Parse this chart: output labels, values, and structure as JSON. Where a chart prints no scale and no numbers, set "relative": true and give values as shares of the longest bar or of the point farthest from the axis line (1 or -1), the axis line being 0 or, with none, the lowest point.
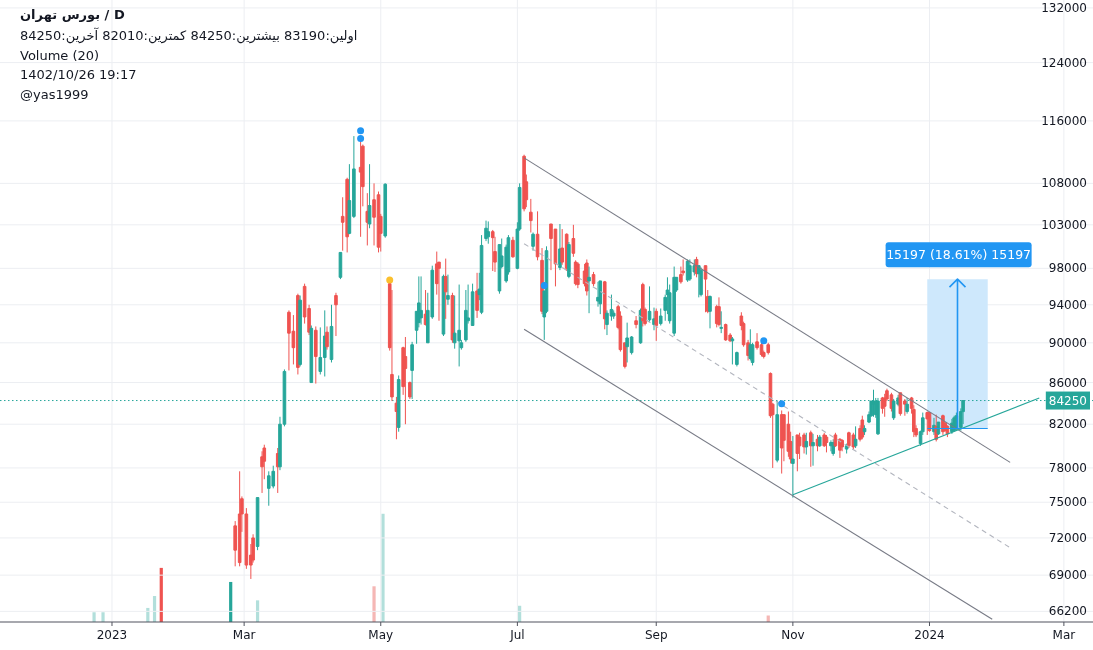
{
  "chart_data": [
    {
      "type": "candlestick",
      "title": "D / بورس تهران",
      "annotations": [
        "اولین:83190 بیشترین:84250 کمترین:82010 آخرین:84250",
        "Volume (20)",
        "1402/10/26 19:17",
        "@yas1999",
        {
          "text": "15197 (18.61%) 15197",
          "x": "2024-01-14",
          "y": 96797
        }
      ],
      "x": [
        "2023-02-25",
        "2023-02-27",
        "2023-02-28",
        "2023-03-02",
        "2023-03-04",
        "2023-03-05",
        "2023-03-07",
        "2023-03-09",
        "2023-03-10",
        "2023-03-12",
        "2023-03-14",
        "2023-03-16",
        "2023-03-17",
        "2023-03-19",
        "2023-03-21",
        "2023-03-23",
        "2023-03-25",
        "2023-03-26",
        "2023-03-28",
        "2023-03-30",
        "2023-03-31",
        "2023-04-02",
        "2023-04-04",
        "2023-04-06",
        "2023-04-07",
        "2023-04-09",
        "2023-04-11",
        "2023-04-13",
        "2023-04-14",
        "2023-04-16",
        "2023-04-17",
        "2023-04-19",
        "2023-04-22",
        "2023-04-23",
        "2023-04-25",
        "2023-04-26",
        "2023-04-28",
        "2023-04-30",
        "2023-05-01",
        "2023-05-03",
        "2023-05-05",
        "2023-05-06",
        "2023-05-08",
        "2023-05-09",
        "2023-05-11",
        "2023-05-12",
        "2023-05-14",
        "2023-05-15",
        "2023-05-17",
        "2023-05-18",
        "2023-05-19",
        "2023-05-21",
        "2023-05-22",
        "2023-05-24",
        "2023-05-26",
        "2023-05-27",
        "2023-05-29",
        "2023-05-30",
        "2023-05-31",
        "2023-06-02",
        "2023-06-03",
        "2023-06-05",
        "2023-06-06",
        "2023-06-08",
        "2023-06-09",
        "2023-06-11",
        "2023-06-13",
        "2023-06-14",
        "2023-06-15",
        "2023-06-17",
        "2023-06-18",
        "2023-06-20",
        "2023-06-21",
        "2023-06-23",
        "2023-06-24",
        "2023-06-26",
        "2023-06-27",
        "2023-06-29",
        "2023-07-01",
        "2023-07-02",
        "2023-07-04",
        "2023-07-05",
        "2023-07-07",
        "2023-07-08",
        "2023-07-10",
        "2023-07-12",
        "2023-07-13",
        "2023-07-14",
        "2023-07-16",
        "2023-07-18",
        "2023-07-20",
        "2023-07-21",
        "2023-07-23",
        "2023-07-24",
        "2023-07-26",
        "2023-07-27",
        "2023-07-28",
        "2023-07-31",
        "2023-08-01",
        "2023-08-02",
        "2023-08-04",
        "2023-08-06",
        "2023-08-07",
        "2023-08-09",
        "2023-08-10",
        "2023-08-12",
        "2023-08-13",
        "2023-08-15",
        "2023-08-16",
        "2023-08-18",
        "2023-08-19",
        "2023-08-21",
        "2023-08-23",
        "2023-08-25",
        "2023-08-26",
        "2023-08-27",
        "2023-08-29",
        "2023-08-31",
        "2023-09-01",
        "2023-09-03",
        "2023-09-05",
        "2023-09-06",
        "2023-09-07",
        "2023-09-09",
        "2023-09-10",
        "2023-09-12",
        "2023-09-13",
        "2023-09-15",
        "2023-09-16",
        "2023-09-18",
        "2023-09-19",
        "2023-09-20",
        "2023-09-21",
        "2023-09-23",
        "2023-09-24",
        "2023-09-25",
        "2023-09-28",
        "2023-09-29",
        "2023-09-30",
        "2023-10-02",
        "2023-10-04",
        "2023-10-05",
        "2023-10-07",
        "2023-10-09",
        "2023-10-10",
        "2023-10-12",
        "2023-10-13",
        "2023-10-14",
        "2023-10-16",
        "2023-10-18",
        "2023-10-19",
        "2023-10-21",
        "2023-10-22",
        "2023-10-23",
        "2023-10-25",
        "2023-10-27",
        "2023-10-28",
        "2023-10-30",
        "2023-10-31",
        "2023-11-01",
        "2023-11-03",
        "2023-11-04",
        "2023-11-06",
        "2023-11-07",
        "2023-11-09",
        "2023-11-10",
        "2023-11-12",
        "2023-11-13",
        "2023-11-15",
        "2023-11-16",
        "2023-11-18",
        "2023-11-19",
        "2023-11-20",
        "2023-11-22",
        "2023-11-23",
        "2023-11-25",
        "2023-11-26",
        "2023-11-28",
        "2023-11-29",
        "2023-12-01",
        "2023-12-02",
        "2023-12-03",
        "2023-12-05",
        "2023-12-06",
        "2023-12-07",
        "2023-12-08",
        "2023-12-09",
        "2023-12-11",
        "2023-12-12",
        "2023-12-13",
        "2023-12-15",
        "2023-12-16",
        "2023-12-18",
        "2023-12-19",
        "2023-12-21",
        "2023-12-22",
        "2023-12-24",
        "2023-12-25",
        "2023-12-26",
        "2023-12-28",
        "2023-12-29",
        "2023-12-31",
        "2024-01-01",
        "2024-01-03",
        "2024-01-04",
        "2024-01-05",
        "2024-01-07",
        "2024-01-08",
        "2024-01-09",
        "2024-01-11",
        "2024-01-12",
        "2024-01-13",
        "2024-01-15",
        "2024-01-16"
      ],
      "ohlc": [
        [
          73000,
          73400,
          69700,
          71000
        ],
        [
          74000,
          77700,
          69700,
          70000
        ],
        [
          75300,
          75500,
          72500,
          74000
        ],
        [
          74000,
          74500,
          69500,
          69800
        ],
        [
          70600,
          71500,
          68700,
          69800
        ],
        [
          72000,
          72300,
          70000,
          70200
        ],
        [
          71300,
          75400,
          71000,
          75400
        ],
        [
          79000,
          79500,
          75800,
          78100
        ],
        [
          79800,
          80100,
          77000,
          78600
        ],
        [
          76200,
          77700,
          74700,
          77300
        ],
        [
          76400,
          78200,
          76200,
          77700
        ],
        [
          79300,
          79800,
          75800,
          78100
        ],
        [
          78100,
          82700,
          77800,
          82000
        ],
        [
          82000,
          87300,
          81800,
          87100
        ],
        [
          93200,
          93400,
          87200,
          91000
        ],
        [
          91200,
          92900,
          87800,
          89500
        ],
        [
          95000,
          95200,
          86800,
          87500
        ],
        [
          87800,
          95000,
          87600,
          94500
        ],
        [
          96000,
          96300,
          92000,
          92700
        ],
        [
          93600,
          94000,
          90800,
          91100
        ],
        [
          86000,
          91800,
          86000,
          91500
        ],
        [
          91300,
          91700,
          85900,
          88600
        ],
        [
          87100,
          91600,
          86800,
          88500
        ],
        [
          88500,
          93400,
          86600,
          90700
        ],
        [
          91100,
          91700,
          89300,
          89600
        ],
        [
          88300,
          94000,
          88000,
          91700
        ],
        [
          95000,
          95300,
          90700,
          94000
        ],
        [
          97000,
          99800,
          96800,
          99800
        ],
        [
          104000,
          106300,
          100000,
          103300
        ],
        [
          108500,
          108700,
          99800,
          101600
        ],
        [
          102000,
          110400,
          101900,
          105900
        ],
        [
          104000,
          114000,
          103800,
          109800
        ],
        [
          110000,
          113500,
          101600,
          109400
        ],
        [
          112700,
          112900,
          105200,
          107600
        ],
        [
          104600,
          106800,
          100600,
          103300
        ],
        [
          103100,
          110400,
          102600,
          105300
        ],
        [
          106000,
          108000,
          100600,
          103900
        ],
        [
          106600,
          107000,
          99800,
          100400
        ],
        [
          104000,
          104300,
          99900,
          102000
        ],
        [
          101700,
          108000,
          101500,
          107900
        ],
        [
          96300,
          96400,
          89200,
          89500
        ],
        [
          86800,
          95600,
          84200,
          84600
        ],
        [
          84000,
          84600,
          80600,
          83200
        ],
        [
          81700,
          86700,
          81300,
          86300
        ],
        [
          89500,
          89600,
          84800,
          85600
        ],
        [
          88600,
          90600,
          82000,
          87400
        ],
        [
          86000,
          86100,
          84400,
          84600
        ],
        [
          87200,
          90100,
          84400,
          89800
        ],
        [
          91300,
          93300,
          89900,
          93300
        ],
        [
          92100,
          97100,
          91600,
          94200
        ],
        [
          92600,
          97100,
          91900,
          93400
        ],
        [
          93000,
          95600,
          91800,
          91900
        ],
        [
          90000,
          95300,
          90000,
          93400
        ],
        [
          92700,
          98300,
          92500,
          97800
        ],
        [
          98500,
          99900,
          95100,
          96300
        ],
        [
          98700,
          98700,
          92300,
          98000
        ],
        [
          90900,
          97300,
          90700,
          97100
        ],
        [
          97100,
          99100,
          92500,
          95400
        ],
        [
          94600,
          97300,
          94000,
          95000
        ],
        [
          95000,
          95300,
          90000,
          90300
        ],
        [
          90000,
          95000,
          89400,
          91000
        ],
        [
          90200,
          96200,
          87600,
          91300
        ],
        [
          89500,
          90300,
          89300,
          90000
        ],
        [
          90300,
          95600,
          90100,
          93400
        ],
        [
          92300,
          96200,
          92000,
          92600
        ],
        [
          91800,
          96300,
          91800,
          95400
        ],
        [
          95500,
          97500,
          92600,
          93400
        ],
        [
          95100,
          97500,
          94500,
          95700
        ],
        [
          93200,
          101800,
          93000,
          100600
        ],
        [
          101400,
          103500,
          101100,
          102600
        ],
        [
          101600,
          103400,
          100800,
          102200
        ],
        [
          102200,
          102400,
          97700,
          101500
        ],
        [
          99900,
          101600,
          97600,
          98700
        ],
        [
          95500,
          100700,
          95200,
          100700
        ],
        [
          98200,
          101400,
          98000,
          99400
        ],
        [
          96600,
          100700,
          96400,
          100400
        ],
        [
          97600,
          101800,
          97300,
          101500
        ],
        [
          101200,
          101600,
          99200,
          99300
        ],
        [
          98000,
          103300,
          97900,
          102500
        ],
        [
          102500,
          108000,
          102300,
          107500
        ],
        [
          111400,
          111600,
          104600,
          104900
        ],
        [
          108200,
          109100,
          105100,
          106000
        ],
        [
          104500,
          106100,
          102100,
          103500
        ],
        [
          100500,
          102100,
          100000,
          101900
        ],
        [
          101900,
          104600,
          98900,
          99300
        ],
        [
          98900,
          100300,
          93000,
          93300
        ],
        [
          92700,
          95500,
          90300,
          95500
        ],
        [
          93300,
          100500,
          93100,
          100000
        ],
        [
          103100,
          103100,
          97800,
          101400
        ],
        [
          102500,
          102500,
          96000,
          98500
        ],
        [
          98100,
          103100,
          97800,
          100200
        ],
        [
          100300,
          102500,
          98400,
          98700
        ],
        [
          101900,
          102000,
          97700,
          98000
        ],
        [
          97100,
          101000,
          96900,
          100700
        ],
        [
          101400,
          103000,
          99300,
          99700
        ],
        [
          98700,
          98900,
          96100,
          96300
        ],
        [
          98500,
          98700,
          95800,
          96200
        ],
        [
          97700,
          98500,
          96000,
          96300
        ],
        [
          98600,
          99000,
          95000,
          95500
        ],
        [
          96600,
          98200,
          93100,
          97000
        ],
        [
          97300,
          97600,
          96000,
          96300
        ],
        [
          94400,
          96500,
          93800,
          94800
        ],
        [
          94100,
          96600,
          93000,
          96600
        ],
        [
          96500,
          96600,
          91400,
          92500
        ],
        [
          91900,
          93400,
          90800,
          93100
        ],
        [
          92800,
          95100,
          92300,
          93500
        ],
        [
          92800,
          93400,
          92500,
          93100
        ],
        [
          93800,
          94000,
          91400,
          91600
        ],
        [
          92800,
          93300,
          89100,
          89300
        ],
        [
          90000,
          90000,
          87400,
          87600
        ],
        [
          89600,
          92100,
          88000,
          90500
        ],
        [
          89000,
          90700,
          88800,
          90600
        ],
        [
          92300,
          92800,
          91500,
          91900
        ],
        [
          90000,
          93600,
          89900,
          93400
        ],
        [
          96200,
          96400,
          91700,
          92300
        ],
        [
          93500,
          93700,
          91800,
          92000
        ],
        [
          92400,
          96000,
          92200,
          93300
        ],
        [
          91900,
          93700,
          91300,
          92500
        ],
        [
          93300,
          93600,
          90200,
          91800
        ],
        [
          92000,
          93600,
          91800,
          92800
        ],
        [
          93400,
          95100,
          92300,
          94800
        ],
        [
          95100,
          97000,
          93000,
          95600
        ],
        [
          92300,
          96200,
          92000,
          95300
        ],
        [
          91000,
          98200,
          90700,
          97000
        ],
        [
          95600,
          97000,
          95400,
          97000
        ],
        [
          97300,
          98200,
          96300,
          96500
        ],
        [
          97700,
          99000,
          97200,
          97500
        ],
        [
          96700,
          99000,
          96500,
          98800
        ],
        [
          96800,
          99000,
          96600,
          98300
        ],
        [
          97600,
          99000,
          97200,
          98300
        ],
        [
          99000,
          99300,
          97000,
          97400
        ],
        [
          97400,
          98300,
          94800,
          98300
        ],
        [
          95100,
          98100,
          94900,
          97800
        ],
        [
          98300,
          98300,
          93200,
          96800
        ],
        [
          94900,
          95600,
          93100,
          93300
        ],
        [
          93300,
          95000,
          91500,
          94900
        ],
        [
          93800,
          94000,
          91600,
          92000
        ],
        [
          93800,
          94800,
          91700,
          91900
        ],
        [
          91500,
          93300,
          91000,
          91600
        ],
        [
          91900,
          92000,
          90200,
          90300
        ],
        [
          90800,
          91000,
          90100,
          90200
        ],
        [
          90200,
          90600,
          87800,
          90400
        ],
        [
          87800,
          89100,
          87600,
          89000
        ],
        [
          92800,
          93200,
          91300,
          91800
        ],
        [
          92000,
          92200,
          89600,
          89800
        ],
        [
          90000,
          90300,
          88200,
          88700
        ],
        [
          88400,
          91400,
          88200,
          89800
        ],
        [
          88000,
          90000,
          87700,
          89800
        ],
        [
          90100,
          91000,
          89300,
          89500
        ],
        [
          89800,
          90000,
          88600,
          88800
        ],
        [
          89000,
          89200,
          88400,
          88600
        ],
        [
          89800,
          90000,
          88800,
          89000
        ],
        [
          86900,
          87000,
          82600,
          82800
        ],
        [
          83900,
          84000,
          78000,
          82900
        ],
        [
          78700,
          84200,
          78500,
          82900
        ],
        [
          82900,
          83300,
          77500,
          79800
        ],
        [
          82900,
          82900,
          78600,
          80500
        ],
        [
          82000,
          83200,
          79000,
          79500
        ],
        [
          80400,
          81300,
          78400,
          78800
        ],
        [
          78400,
          80900,
          75400,
          78800
        ],
        [
          81000,
          81000,
          77700,
          79300
        ],
        [
          80800,
          81200,
          78800,
          80000
        ],
        [
          81000,
          81200,
          79300,
          79900
        ],
        [
          79900,
          81200,
          79200,
          80400
        ],
        [
          81200,
          81400,
          78100,
          80000
        ],
        [
          80000,
          81100,
          78200,
          80300
        ],
        [
          80600,
          81000,
          79500,
          80000
        ],
        [
          80000,
          81000,
          79900,
          80800
        ],
        [
          81000,
          81200,
          79900,
          80000
        ],
        [
          80800,
          81000,
          79400,
          80300
        ],
        [
          80000,
          80500,
          79500,
          80300
        ],
        [
          79300,
          80600,
          79100,
          80300
        ],
        [
          81000,
          81200,
          79900,
          80000
        ],
        [
          80600,
          80700,
          78900,
          79600
        ],
        [
          80500,
          80600,
          79500,
          79900
        ],
        [
          79700,
          80200,
          79300,
          80000
        ],
        [
          81200,
          81300,
          79800,
          80000
        ],
        [
          81000,
          81200,
          79700,
          79900
        ],
        [
          80000,
          81800,
          79800,
          80600
        ],
        [
          81600,
          81900,
          80400,
          80600
        ],
        [
          82400,
          82800,
          80600,
          80800
        ],
        [
          81300,
          81900,
          81000,
          81600
        ],
        [
          82200,
          83200,
          82100,
          82900
        ],
        [
          82800,
          84200,
          82700,
          84200
        ],
        [
          83900,
          85300,
          82700,
          84200
        ],
        [
          82900,
          84500,
          82600,
          84200
        ],
        [
          81100,
          84500,
          81000,
          84200
        ],
        [
          84500,
          84600,
          83000,
          83500
        ],
        [
          84500,
          84900,
          82700,
          83700
        ],
        [
          85200,
          85400,
          84200,
          84400
        ],
        [
          84800,
          85000,
          83200,
          83500
        ],
        [
          82600,
          84400,
          82400,
          84200
        ],
        [
          83900,
          84800,
          83700,
          84500
        ],
        [
          85000,
          85000,
          82800,
          83000
        ],
        [
          84200,
          84400,
          82800,
          83900
        ],
        [
          83200,
          84500,
          83000,
          83900
        ],
        [
          84500,
          84600,
          83000,
          83500
        ],
        [
          83400,
          83800,
          80800,
          81300
        ],
        [
          81600,
          81900,
          80800,
          81000
        ],
        [
          80200,
          81400,
          80000,
          81300
        ],
        [
          81300,
          83100,
          81000,
          82600
        ],
        [
          83100,
          83200,
          81000,
          82500
        ],
        [
          83100,
          83100,
          81300,
          81400
        ],
        [
          81300,
          82600,
          81000,
          81900
        ],
        [
          81800,
          82900,
          80400,
          80600
        ],
        [
          81100,
          82200,
          81000,
          82200
        ],
        [
          82800,
          82900,
          81000,
          81300
        ],
        [
          82100,
          82200,
          81300,
          81400
        ],
        [
          81800,
          81900,
          80800,
          81100
        ],
        [
          81300,
          82500,
          81100,
          82100
        ],
        [
          81400,
          82800,
          81300,
          82600
        ],
        [
          81600,
          83100,
          81400,
          82800
        ],
        [
          81700,
          83500,
          81400,
          83200
        ],
        [
          83190,
          84250,
          82010,
          84250
        ]
      ],
      "colors": [
        "#ef5350",
        "#ef5350",
        "#ef5350",
        "#ef5350",
        "#ef5350",
        "#ef5350",
        "#26a69a",
        "#ef5350",
        "#ef5350",
        "#26a69a",
        "#26a69a",
        "#ef5350",
        "#26a69a",
        "#26a69a",
        "#ef5350",
        "#ef5350",
        "#ef5350",
        "#26a69a",
        "#ef5350",
        "#ef5350",
        "#26a69a",
        "#ef5350",
        "#26a69a",
        "#26a69a",
        "#ef5350",
        "#26a69a",
        "#ef5350",
        "#26a69a",
        "#ef5350",
        "#ef5350",
        "#26a69a",
        "#26a69a",
        "#ef5350",
        "#ef5350",
        "#ef5350",
        "#26a69a",
        "#ef5350",
        "#ef5350",
        "#ef5350",
        "#26a69a",
        "#ef5350",
        "#ef5350",
        "#ef5350",
        "#26a69a",
        "#ef5350",
        "#ef5350",
        "#ef5350",
        "#26a69a",
        "#26a69a",
        "#26a69a",
        "#26a69a",
        "#ef5350",
        "#26a69a",
        "#26a69a",
        "#ef5350",
        "#ef5350",
        "#26a69a",
        "#ef5350",
        "#26a69a",
        "#ef5350",
        "#26a69a",
        "#26a69a",
        "#26a69a",
        "#26a69a",
        "#26a69a",
        "#26a69a",
        "#ef5350",
        "#26a69a",
        "#26a69a",
        "#26a69a",
        "#26a69a",
        "#ef5350",
        "#ef5350",
        "#26a69a",
        "#26a69a",
        "#26a69a",
        "#26a69a",
        "#ef5350",
        "#26a69a",
        "#26a69a",
        "#ef5350",
        "#ef5350",
        "#ef5350",
        "#26a69a",
        "#ef5350",
        "#ef5350",
        "#26a69a",
        "#26a69a",
        "#ef5350",
        "#ef5350",
        "#26a69a",
        "#ef5350",
        "#ef5350",
        "#26a69a",
        "#ef5350",
        "#ef5350",
        "#ef5350",
        "#ef5350",
        "#ef5350",
        "#26a69a",
        "#ef5350",
        "#26a69a",
        "#26a69a",
        "#ef5350",
        "#26a69a",
        "#26a69a",
        "#26a69a",
        "#ef5350",
        "#ef5350",
        "#ef5350",
        "#26a69a",
        "#26a69a",
        "#ef5350",
        "#26a69a",
        "#ef5350",
        "#ef5350",
        "#26a69a",
        "#26a69a",
        "#ef5350",
        "#26a69a",
        "#26a69a",
        "#26a69a",
        "#26a69a",
        "#26a69a",
        "#26a69a",
        "#ef5350",
        "#ef5350",
        "#26a69a",
        "#26a69a",
        "#26a69a",
        "#ef5350",
        "#26a69a",
        "#26a69a",
        "#ef5350",
        "#ef5350",
        "#26a69a",
        "#ef5350",
        "#ef5350",
        "#26a69a",
        "#ef5350",
        "#ef5350",
        "#26a69a",
        "#26a69a",
        "#ef5350",
        "#ef5350",
        "#ef5350",
        "#26a69a",
        "#26a69a",
        "#ef5350",
        "#ef5350",
        "#ef5350",
        "#ef5350",
        "#ef5350",
        "#ef5350",
        "#26a69a",
        "#ef5350",
        "#ef5350",
        "#ef5350",
        "#ef5350",
        "#26a69a",
        "#ef5350",
        "#ef5350",
        "#ef5350",
        "#26a69a",
        "#ef5350",
        "#26a69a",
        "#ef5350",
        "#26a69a",
        "#ef5350",
        "#ef5350",
        "#26a69a",
        "#26a69a",
        "#ef5350",
        "#ef5350",
        "#ef5350",
        "#26a69a",
        "#ef5350",
        "#ef5350",
        "#26a69a",
        "#ef5350",
        "#ef5350",
        "#26a69a",
        "#26a69a",
        "#26a69a",
        "#26a69a",
        "#26a69a",
        "#26a69a",
        "#ef5350",
        "#ef5350",
        "#ef5350",
        "#ef5350",
        "#26a69a",
        "#26a69a",
        "#ef5350",
        "#ef5350",
        "#26a69a",
        "#ef5350",
        "#ef5350",
        "#ef5350",
        "#26a69a",
        "#26a69a",
        "#ef5350",
        "#ef5350",
        "#26a69a",
        "#ef5350",
        "#26a69a",
        "#ef5350",
        "#ef5350",
        "#ef5350",
        "#26a69a",
        "#26a69a",
        "#26a69a",
        "#26a69a",
        "#26a69a"
      ],
      "series": [
        {
          "type": "line",
          "x": [
            "2023-07-04",
            "2024-02-06"
          ],
          "values": [
            111200,
            78500
          ],
          "color": "#787b86",
          "line_style": "solid"
        },
        {
          "type": "line",
          "x": [
            "2023-07-04",
            "2024-01-29"
          ],
          "values": [
            91400,
            65600
          ],
          "color": "#787b86",
          "line_style": "solid"
        },
        {
          "type": "line",
          "x": [
            "2023-07-04",
            "2024-02-06"
          ],
          "values": [
            100800,
            71200
          ],
          "color": "#b2b5be",
          "line_style": "dashed"
        },
        {
          "type": "line",
          "x": [
            "2023-11-01",
            "2024-02-19"
          ],
          "values": [
            75650,
            84500
          ],
          "color": "#26a69a",
          "line_style": "solid"
        },
        {
          "type": "line",
          "x": [
            "2023-12-31",
            "2024-01-27"
          ],
          "values": [
            81600,
            81600
          ],
          "lower": [
            81600,
            81600
          ],
          "upper": [
            96797,
            96797
          ],
          "color": "#2196f3",
          "line_style": "solid"
        },
        {
          "type": "scatter",
          "x": [
            "2023-04-22",
            "2023-04-22",
            "2023-07-13",
            "2023-10-19",
            "2023-10-27"
          ],
          "values": [
            114700,
            113700,
            96100,
            90200,
            83950
          ],
          "color": "#2196f3",
          "marker": "circle"
        },
        {
          "type": "scatter",
          "x": [
            "2023-05-05"
          ],
          "values": [
            96700
          ],
          "color": "#fbc02d",
          "marker": "circle"
        }
      ],
      "ref_lines": [
        {
          "axis": "y",
          "value": 84250,
          "label": "84250",
          "color": "#26a69a",
          "line_style": "dotted"
        }
      ],
      "xlim": [
        "2022-11-12",
        "2024-03-14"
      ],
      "ylim": [
        65400,
        133200
      ],
      "log": "y",
      "grid": true,
      "xticks": [
        {
          "value": "2023-01-01",
          "label": "2023"
        },
        {
          "value": "2023-03-01",
          "label": "Mar"
        },
        {
          "value": "2023-05-01",
          "label": "May"
        },
        {
          "value": "2023-07-01",
          "label": "Jul"
        },
        {
          "value": "2023-09-01",
          "label": "Sep"
        },
        {
          "value": "2023-11-01",
          "label": "Nov"
        },
        {
          "value": "2024-01-01",
          "label": "2024"
        },
        {
          "value": "2024-03-01",
          "label": "Mar"
        }
      ],
      "yticks": [
        66200,
        69000,
        72000,
        75000,
        78000,
        82000,
        86000,
        90000,
        94000,
        98000,
        103000,
        108000,
        116000,
        124000,
        132000
      ]
    },
    {
      "type": "bar",
      "relative": true,
      "x": [
        "2022-12-24",
        "2022-12-28",
        "2023-01-17",
        "2023-01-20",
        "2023-01-23",
        "2023-02-23",
        "2023-03-07",
        "2023-04-28",
        "2023-05-02",
        "2023-07-02",
        "2023-10-21"
      ],
      "values": [
        0.09,
        0.09,
        0.13,
        0.24,
        0.5,
        0.37,
        0.2,
        0.33,
        1,
        0.15,
        0.06
      ],
      "colors": [
        "#b2dfdb",
        "#b2dfdb",
        "#b2dfdb",
        "#b2dfdb",
        "#ef5350",
        "#26a69a",
        "#b2dfdb",
        "#f5b7b5",
        "#b2dfdb",
        "#b2dfdb",
        "#f5b7b5"
      ],
      "xlim": [
        "2022-11-12",
        "2024-03-14"
      ]
    }
  ]
}
